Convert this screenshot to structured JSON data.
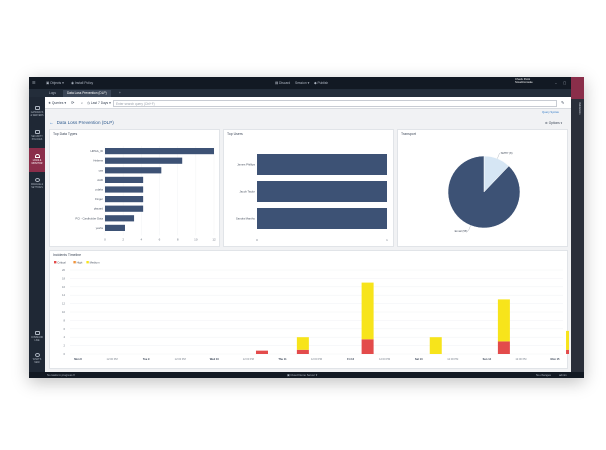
{
  "titlebar": {
    "menu": "Objects",
    "policy": "Install Policy",
    "center_left": "Discard",
    "center_mid": "Session",
    "center_right": "Publish",
    "brand_line1": "Check Point",
    "brand_line2": "SmartConsole"
  },
  "tabs": [
    {
      "label": "Logs"
    },
    {
      "label": "Data Loss Prevention (DLP)"
    },
    {
      "label": "+"
    }
  ],
  "sidebar": {
    "items": [
      {
        "label1": "GATEWAYS",
        "label2": "& SERVERS"
      },
      {
        "label1": "SECURITY",
        "label2": "POLICIES"
      },
      {
        "label1": "LOGS &",
        "label2": "MONITOR"
      },
      {
        "label1": "MANAGE &",
        "label2": "SETTINGS"
      }
    ],
    "bottom": [
      {
        "label1": "COMMAND",
        "label2": "LINE"
      },
      {
        "label1": "WHAT'S",
        "label2": "NEW"
      }
    ]
  },
  "right_panel": {
    "label": "Validations"
  },
  "query": {
    "queries_label": "Queries",
    "time_range": "Last 7 Days",
    "placeholder": "Enter search query (Ctrl+F)",
    "query_syntax": "Query Syntax"
  },
  "page": {
    "title": "Data Loss Prevention (DLP)",
    "options_label": "Options"
  },
  "colors": {
    "bar": "#3d5275",
    "pie_main": "#3d5275",
    "pie_secondary": "#d6e6f4",
    "critical": "#e34b4b",
    "high": "#f0943c",
    "medium": "#f7e41b",
    "accent": "#8a2e4a"
  },
  "status": {
    "left": "No tasks in progress",
    "center": "Cloud Demo Server",
    "right1": "No changes",
    "right2": "admin"
  },
  "chart_data": [
    {
      "type": "bar",
      "title": "Top Data Types",
      "orientation": "horizontal",
      "categories": [
        "HIPAA_ID",
        "Hebrew",
        "cas",
        "AAD",
        "pdaks",
        "Finger",
        "placard",
        "PCI - Cardholder Data",
        "yeshs"
      ],
      "values": [
        12,
        8.5,
        6.2,
        4.2,
        4.2,
        4.2,
        4.2,
        3.2,
        2.2
      ],
      "xticks": [
        "0",
        "2",
        "4",
        "6",
        "8",
        "10",
        "12"
      ],
      "xlim": [
        0,
        12
      ]
    },
    {
      "type": "bar",
      "title": "Top Users",
      "orientation": "horizontal",
      "categories": [
        "James Phillips",
        "Jacob Taylor",
        "Sandra Mantho"
      ],
      "values": [
        1,
        1,
        1
      ],
      "xticks": [
        "0",
        "1"
      ],
      "xlim": [
        0,
        1
      ]
    },
    {
      "type": "pie",
      "title": "Transport",
      "slices": [
        {
          "label": "SMTP (8)",
          "value": 8
        },
        {
          "label": "Email (58)",
          "value": 58
        }
      ]
    },
    {
      "type": "bar",
      "stacked": true,
      "title": "Incidents Timeline",
      "legend": [
        "Critical",
        "High",
        "Medium"
      ],
      "ylim": [
        0,
        20
      ],
      "yticks": [
        "0",
        "2",
        "4",
        "6",
        "8",
        "10",
        "12",
        "14",
        "16",
        "18",
        "20"
      ],
      "date_labels": [
        "Mon 8",
        "Tue 9",
        "Wed 10",
        "Thu 11",
        "Fri 12",
        "Sat 13",
        "Sun 14",
        "Mon 15"
      ],
      "time_label": "12:00 PM",
      "bars": [
        {
          "x": 5.4,
          "critical": 0.8,
          "high": 0,
          "medium": 0
        },
        {
          "x": 6.6,
          "critical": 1,
          "high": 0,
          "medium": 3
        },
        {
          "x": 8.5,
          "critical": 3.5,
          "high": 0,
          "medium": 13.5
        },
        {
          "x": 10.5,
          "critical": 0,
          "high": 0,
          "medium": 4
        },
        {
          "x": 12.5,
          "critical": 3,
          "high": 0,
          "medium": 10
        },
        {
          "x": 14.5,
          "critical": 1,
          "high": 0,
          "medium": 4.5
        }
      ]
    }
  ]
}
